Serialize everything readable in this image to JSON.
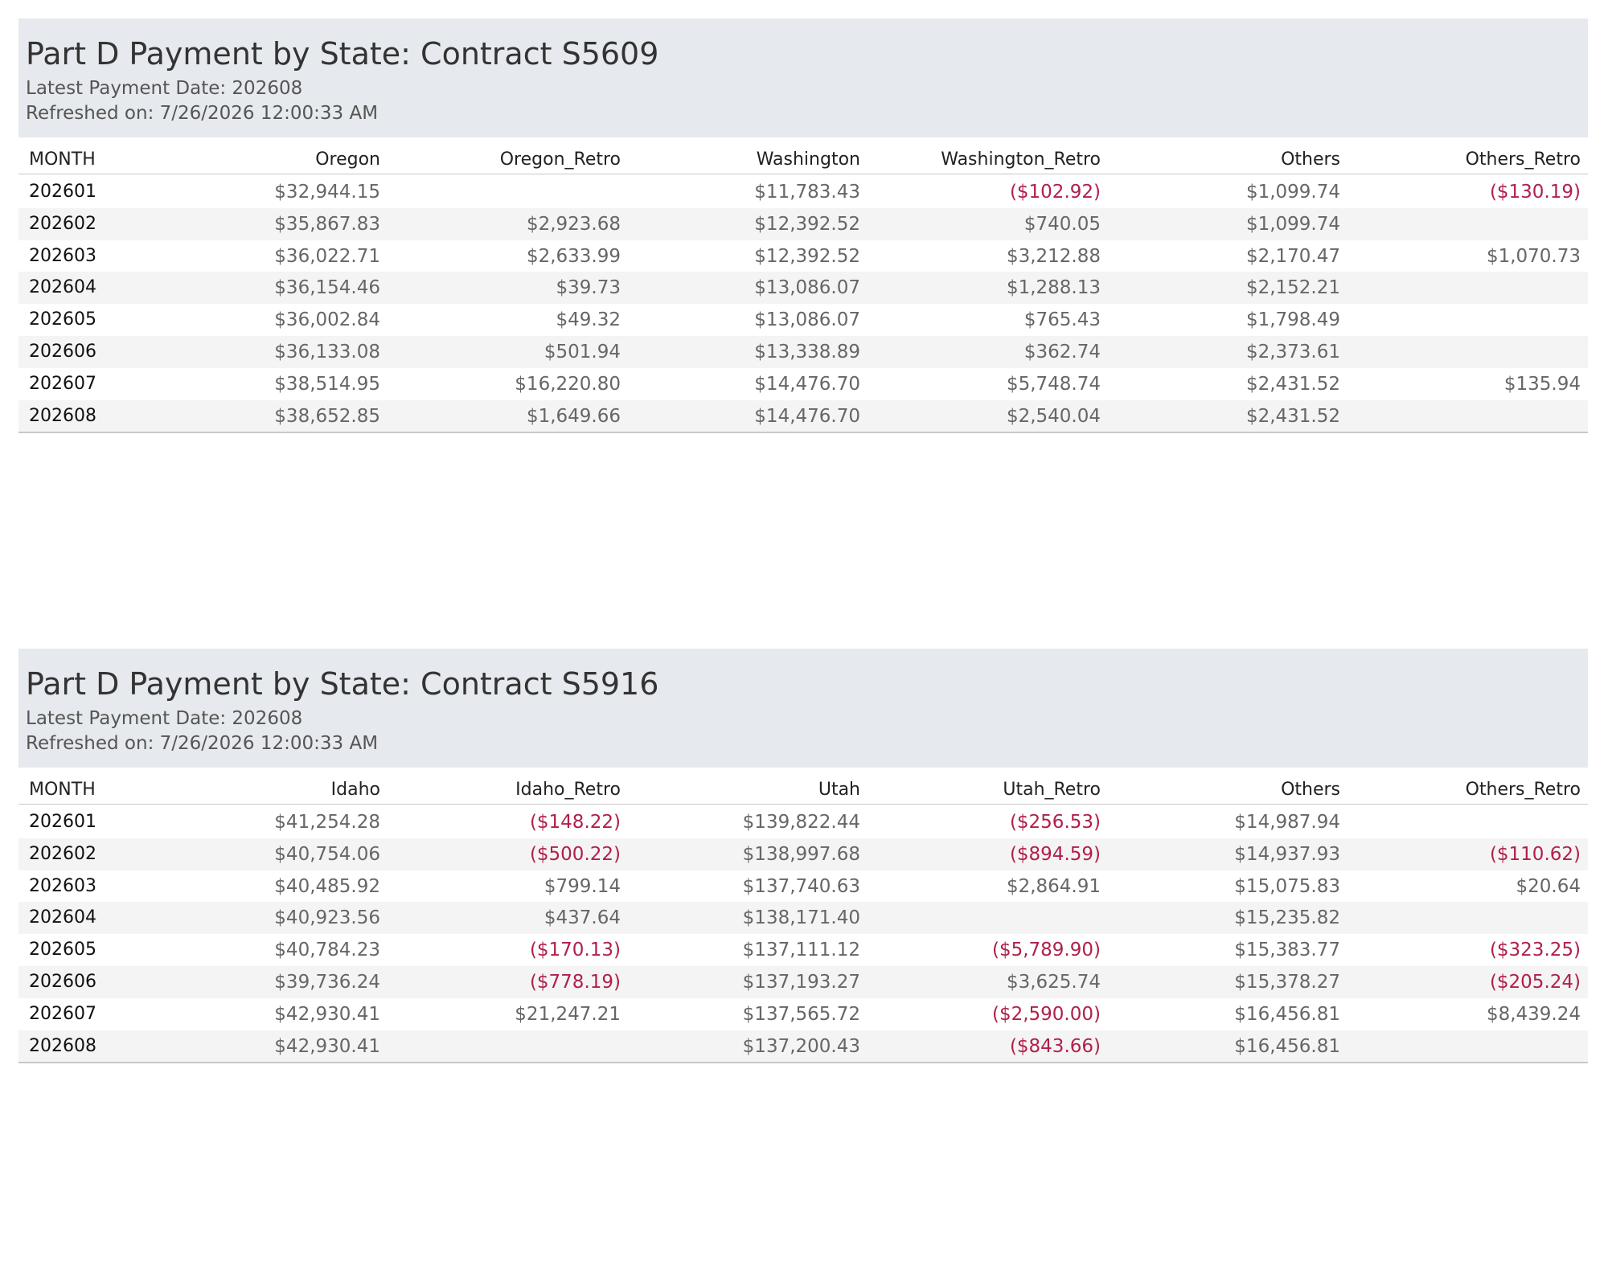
{
  "panels": [
    {
      "title": "Part D Payment by State: Contract S5609",
      "latest": "Latest Payment Date: 202608",
      "refreshed": "Refreshed on: 7/26/2026 12:00:33 AM",
      "columns": [
        "MONTH",
        "Oregon",
        "Oregon_Retro",
        "Washington",
        "Washington_Retro",
        "Others",
        "Others_Retro"
      ],
      "rows": [
        [
          "202601",
          "$32,944.15",
          null,
          "$11,783.43",
          "($102.92)",
          "$1,099.74",
          "($130.19)"
        ],
        [
          "202602",
          "$35,867.83",
          "$2,923.68",
          "$12,392.52",
          "$740.05",
          "$1,099.74",
          null
        ],
        [
          "202603",
          "$36,022.71",
          "$2,633.99",
          "$12,392.52",
          "$3,212.88",
          "$2,170.47",
          "$1,070.73"
        ],
        [
          "202604",
          "$36,154.46",
          "$39.73",
          "$13,086.07",
          "$1,288.13",
          "$2,152.21",
          null
        ],
        [
          "202605",
          "$36,002.84",
          "$49.32",
          "$13,086.07",
          "$765.43",
          "$1,798.49",
          null
        ],
        [
          "202606",
          "$36,133.08",
          "$501.94",
          "$13,338.89",
          "$362.74",
          "$2,373.61",
          null
        ],
        [
          "202607",
          "$38,514.95",
          "$16,220.80",
          "$14,476.70",
          "$5,748.74",
          "$2,431.52",
          "$135.94"
        ],
        [
          "202608",
          "$38,652.85",
          "$1,649.66",
          "$14,476.70",
          "$2,540.04",
          "$2,431.52",
          null
        ]
      ]
    },
    {
      "title": "Part D Payment by State: Contract S5916",
      "latest": "Latest Payment Date: 202608",
      "refreshed": "Refreshed on: 7/26/2026 12:00:33 AM",
      "columns": [
        "MONTH",
        "Idaho",
        "Idaho_Retro",
        "Utah",
        "Utah_Retro",
        "Others",
        "Others_Retro"
      ],
      "rows": [
        [
          "202601",
          "$41,254.28",
          "($148.22)",
          "$139,822.44",
          "($256.53)",
          "$14,987.94",
          null
        ],
        [
          "202602",
          "$40,754.06",
          "($500.22)",
          "$138,997.68",
          "($894.59)",
          "$14,937.93",
          "($110.62)"
        ],
        [
          "202603",
          "$40,485.92",
          "$799.14",
          "$137,740.63",
          "$2,864.91",
          "$15,075.83",
          "$20.64"
        ],
        [
          "202604",
          "$40,923.56",
          "$437.64",
          "$138,171.40",
          null,
          "$15,235.82",
          null
        ],
        [
          "202605",
          "$40,784.23",
          "($170.13)",
          "$137,111.12",
          "($5,789.90)",
          "$15,383.77",
          "($323.25)"
        ],
        [
          "202606",
          "$39,736.24",
          "($778.19)",
          "$137,193.27",
          "$3,625.74",
          "$15,378.27",
          "($205.24)"
        ],
        [
          "202607",
          "$42,930.41",
          "$21,247.21",
          "$137,565.72",
          "($2,590.00)",
          "$16,456.81",
          "$8,439.24"
        ],
        [
          "202608",
          "$42,930.41",
          null,
          "$137,200.43",
          "($843.66)",
          "$16,456.81",
          null
        ]
      ]
    }
  ]
}
